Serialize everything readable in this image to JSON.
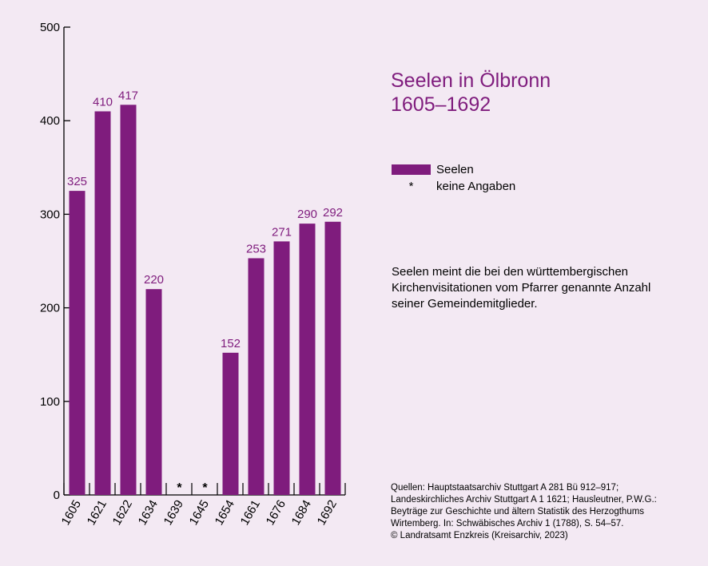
{
  "title_lines": [
    "Seelen in Ölbronn",
    "1605–1692"
  ],
  "legend": {
    "series_label": "Seelen",
    "star_symbol": "*",
    "star_label": "keine Angaben"
  },
  "note": "Seelen meint die bei den württembergischen Kirchenvisitationen vom Pfarrer genannte Anzahl seiner Gemeindemitglieder.",
  "sources": [
    "Quellen: Hauptstaatsarchiv Stuttgart A 281 Bü 912–917;",
    "Landeskirchliches Archiv Stuttgart A 1 1621; Hausleutner, P.W.G.:",
    "Beyträge zur Geschichte und ältern Statistik des Herzogthums",
    "Wirtemberg. In: Schwäbisches Archiv 1 (1788), S. 54–57.",
    "© Landratsamt Enzkreis (Kreisarchiv, 2023)"
  ],
  "colors": {
    "bar": "#7f1c7d",
    "label": "#7f1c7d",
    "axis": "#000000",
    "background": "#f3e9f3"
  },
  "chart_data": {
    "type": "bar",
    "categories": [
      "1605",
      "1621",
      "1622",
      "1634",
      "1639",
      "1645",
      "1654",
      "1661",
      "1676",
      "1684",
      "1692"
    ],
    "values": [
      325,
      410,
      417,
      220,
      null,
      null,
      152,
      253,
      271,
      290,
      292
    ],
    "value_labels": [
      "325",
      "410",
      "417",
      "220",
      "*",
      "*",
      "152",
      "253",
      "271",
      "290",
      "292"
    ],
    "ylim": [
      0,
      500
    ],
    "yticks": [
      0,
      100,
      200,
      300,
      400,
      500
    ],
    "grid": false,
    "legend_position": "right"
  }
}
